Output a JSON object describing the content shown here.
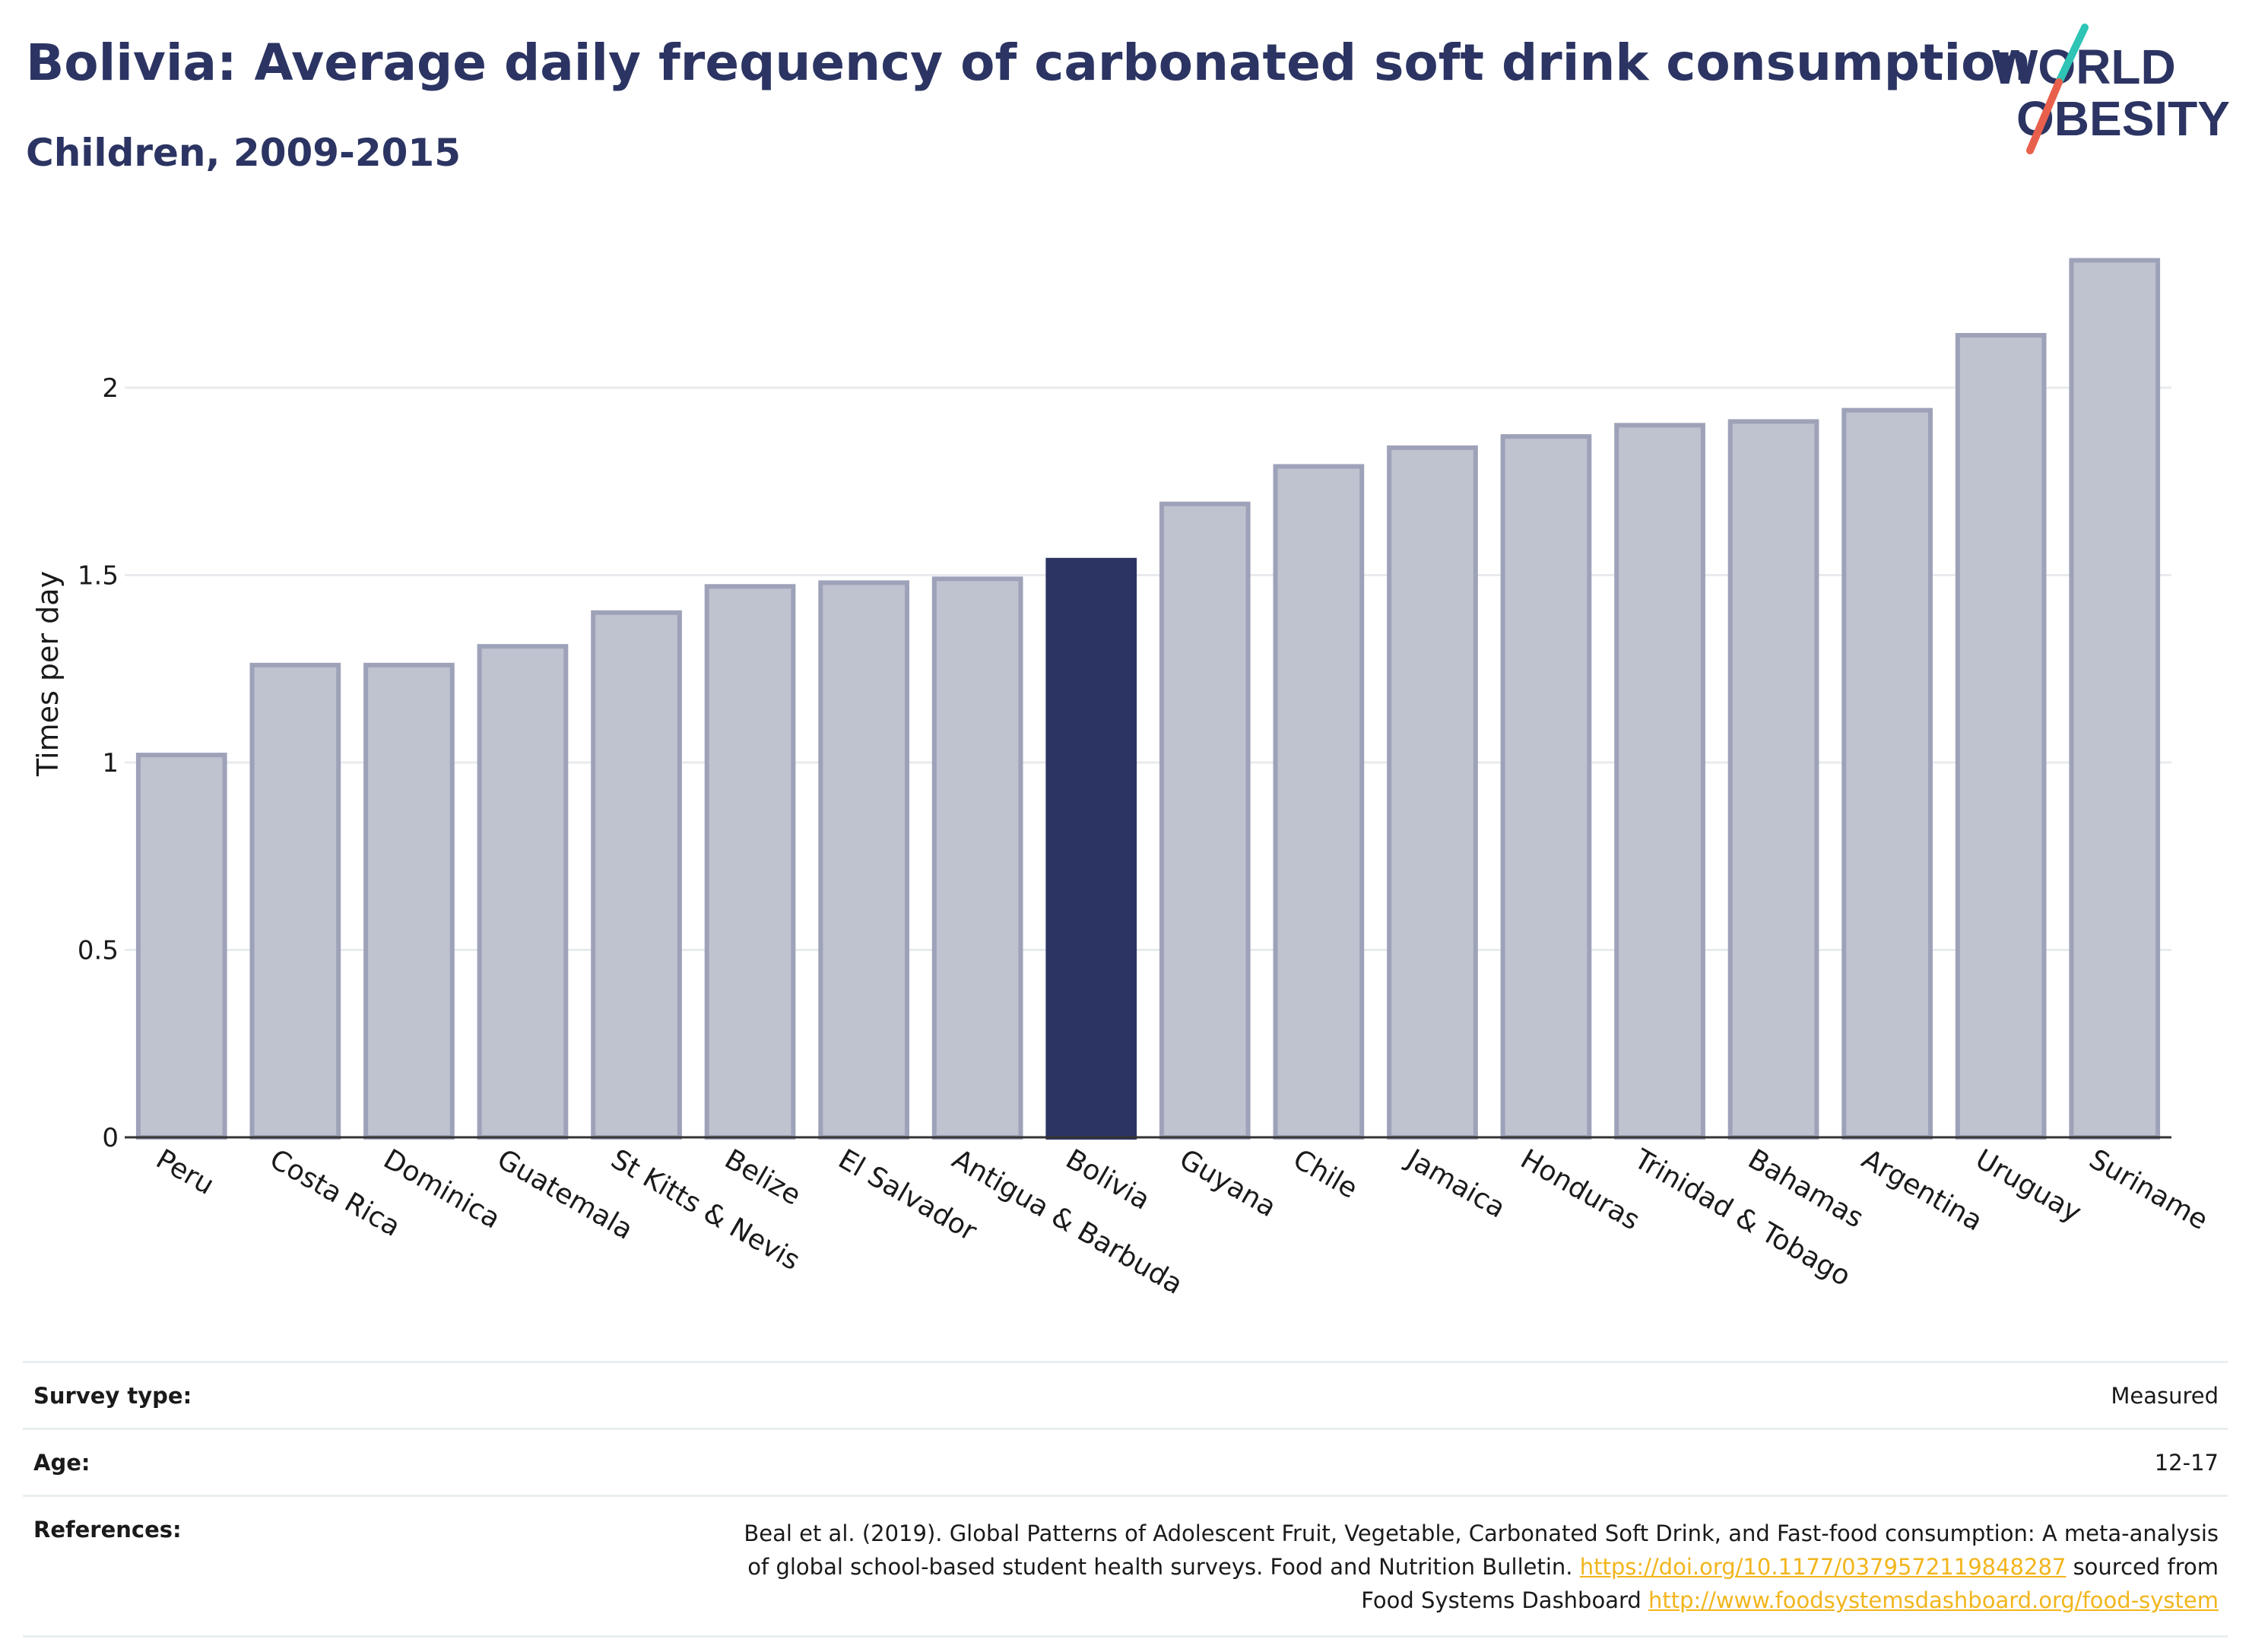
{
  "header": {
    "title": "Bolivia: Average daily frequency of carbonated soft drink consumption",
    "subtitle": "Children, 2009-2015",
    "logo_line1": "WORLD",
    "logo_line2": "OBESITY"
  },
  "colors": {
    "title": "#2b3462",
    "highlight_bar": "#2b3462",
    "other_bar_fill": "#bfc2cf",
    "other_bar_stroke": "#9ea2b9",
    "link": "#f2b51c",
    "logo_teal": "#2ec4b6",
    "logo_coral": "#e8604c"
  },
  "chart_data": {
    "type": "bar",
    "title": "Bolivia: Average daily frequency of carbonated soft drink consumption",
    "subtitle": "Children, 2009-2015",
    "xlabel": "",
    "ylabel": "Times per day",
    "ylim": [
      0,
      2.4
    ],
    "yticks": [
      0,
      0.5,
      1,
      1.5,
      2
    ],
    "ytick_labels": [
      "0",
      "0.5",
      "1",
      "1.5",
      "2"
    ],
    "grid": true,
    "highlight": "Bolivia",
    "categories": [
      "Peru",
      "Costa Rica",
      "Dominica",
      "Guatemala",
      "St Kitts & Nevis",
      "Belize",
      "El Salvador",
      "Antigua & Barbuda",
      "Bolivia",
      "Guyana",
      "Chile",
      "Jamaica",
      "Honduras",
      "Trinidad & Tobago",
      "Bahamas",
      "Argentina",
      "Uruguay",
      "Suriname"
    ],
    "values": [
      1.02,
      1.26,
      1.26,
      1.31,
      1.4,
      1.47,
      1.48,
      1.49,
      1.54,
      1.69,
      1.79,
      1.84,
      1.87,
      1.9,
      1.91,
      1.94,
      2.14,
      2.34
    ]
  },
  "meta": {
    "survey_type_label": "Survey type:",
    "survey_type_value": "Measured",
    "age_label": "Age:",
    "age_value": "12-17",
    "references_label": "References:",
    "ref_text_1": "Beal et al. (2019). Global Patterns of Adolescent Fruit, Vegetable, Carbonated Soft Drink, and Fast-food consumption: A meta-analysis",
    "ref_text_2": "of global school-based student health surveys. Food and Nutrition Bulletin.",
    "ref_link_1": "https://doi.org/10.1177/0379572119848287",
    "ref_text_3": "sourced from",
    "ref_text_4": "Food Systems Dashboard",
    "ref_link_2": "http://www.foodsystemsdashboard.org/food-system"
  }
}
